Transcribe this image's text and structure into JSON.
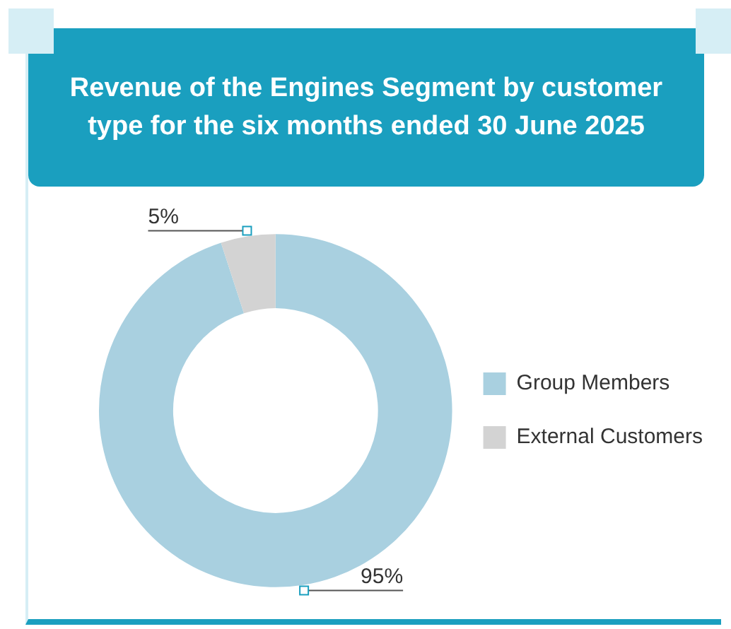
{
  "chart_data": {
    "type": "donut",
    "title": "Revenue of the Engines Segment by customer type for the six months ended 30 June 2025",
    "categories": [
      "Group Members",
      "External Customers"
    ],
    "values": [
      95,
      5
    ],
    "colors": [
      "#a9d0e0",
      "#d3d3d3"
    ],
    "value_labels": [
      "95%",
      "5%"
    ],
    "legend": "right"
  }
}
